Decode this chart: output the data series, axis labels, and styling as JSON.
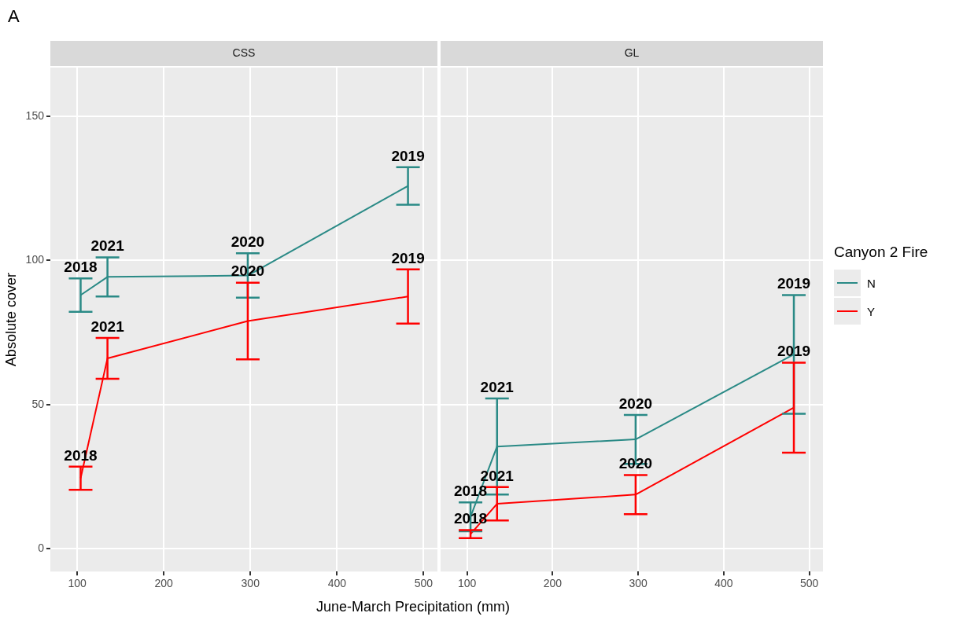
{
  "chart_data": [
    {
      "type": "line",
      "title": "CSS",
      "xlabel": "June-March Precipitation (mm)",
      "ylabel": "Absolute cover",
      "xlim": [
        69,
        516
      ],
      "xticks": [
        100,
        200,
        300,
        400,
        500
      ],
      "ylim": [
        -8,
        167
      ],
      "yticks": [
        0,
        50,
        100,
        150
      ],
      "grid": true,
      "legend": false,
      "marker": "none",
      "series": [
        {
          "color": "#2a8a86",
          "x": [
            104,
            135,
            297,
            482
          ],
          "values": [
            88,
            94.3,
            94.8,
            125.9
          ],
          "errors": [
            5.8,
            6.8,
            7.7,
            6.5
          ]
        },
        {
          "color": "#ff0000",
          "x": [
            104,
            135,
            297,
            482
          ],
          "values": [
            24.4,
            66,
            79,
            87.5
          ],
          "errors": [
            4,
            7.1,
            13.3,
            9.4
          ]
        }
      ],
      "annotations": [
        "A",
        {
          "text": "2018",
          "x": 104,
          "y": 93.8
        },
        {
          "text": "2021",
          "x": 135,
          "y": 101.1
        },
        {
          "text": "2020",
          "x": 297,
          "y": 102.5
        },
        {
          "text": "2019",
          "x": 482,
          "y": 132.4
        },
        {
          "text": "2018",
          "x": 104,
          "y": 28.4
        },
        {
          "text": "2021",
          "x": 135,
          "y": 73.1
        },
        {
          "text": "2020",
          "x": 297,
          "y": 92.3
        },
        {
          "text": "2019",
          "x": 482,
          "y": 96.9
        }
      ]
    },
    {
      "type": "line",
      "title": "GL",
      "xlim": [
        69,
        516
      ],
      "xticks": [
        100,
        200,
        300,
        400,
        500
      ],
      "ylim": [
        -8,
        167
      ],
      "yticks": [
        0,
        50,
        100,
        150
      ],
      "grid": true,
      "tick_labels": "x",
      "legend": "right",
      "legend_title": "Canyon 2 Fire",
      "marker": "none",
      "series": [
        {
          "name": "N",
          "color": "#2a8a86",
          "x": [
            104,
            135,
            297,
            482
          ],
          "values": [
            11,
            35.4,
            37.9,
            67.4
          ],
          "errors": [
            5,
            16.7,
            8.5,
            20.6
          ]
        },
        {
          "name": "Y",
          "color": "#ff0000",
          "x": [
            104,
            135,
            297,
            482
          ],
          "values": [
            5,
            15.5,
            18.7,
            48.9
          ],
          "errors": [
            1.4,
            5.8,
            6.8,
            15.6
          ]
        }
      ],
      "annotations": [
        {
          "text": "2018",
          "x": 104,
          "y": 16
        },
        {
          "text": "2021",
          "x": 135,
          "y": 52.1
        },
        {
          "text": "2020",
          "x": 297,
          "y": 46.4
        },
        {
          "text": "2019",
          "x": 482,
          "y": 88
        },
        {
          "text": "2018",
          "x": 104,
          "y": 6.4
        },
        {
          "text": "2021",
          "x": 135,
          "y": 21.3
        },
        {
          "text": "2020",
          "x": 297,
          "y": 25.5
        },
        {
          "text": "2019",
          "x": 482,
          "y": 64.5
        }
      ]
    }
  ]
}
